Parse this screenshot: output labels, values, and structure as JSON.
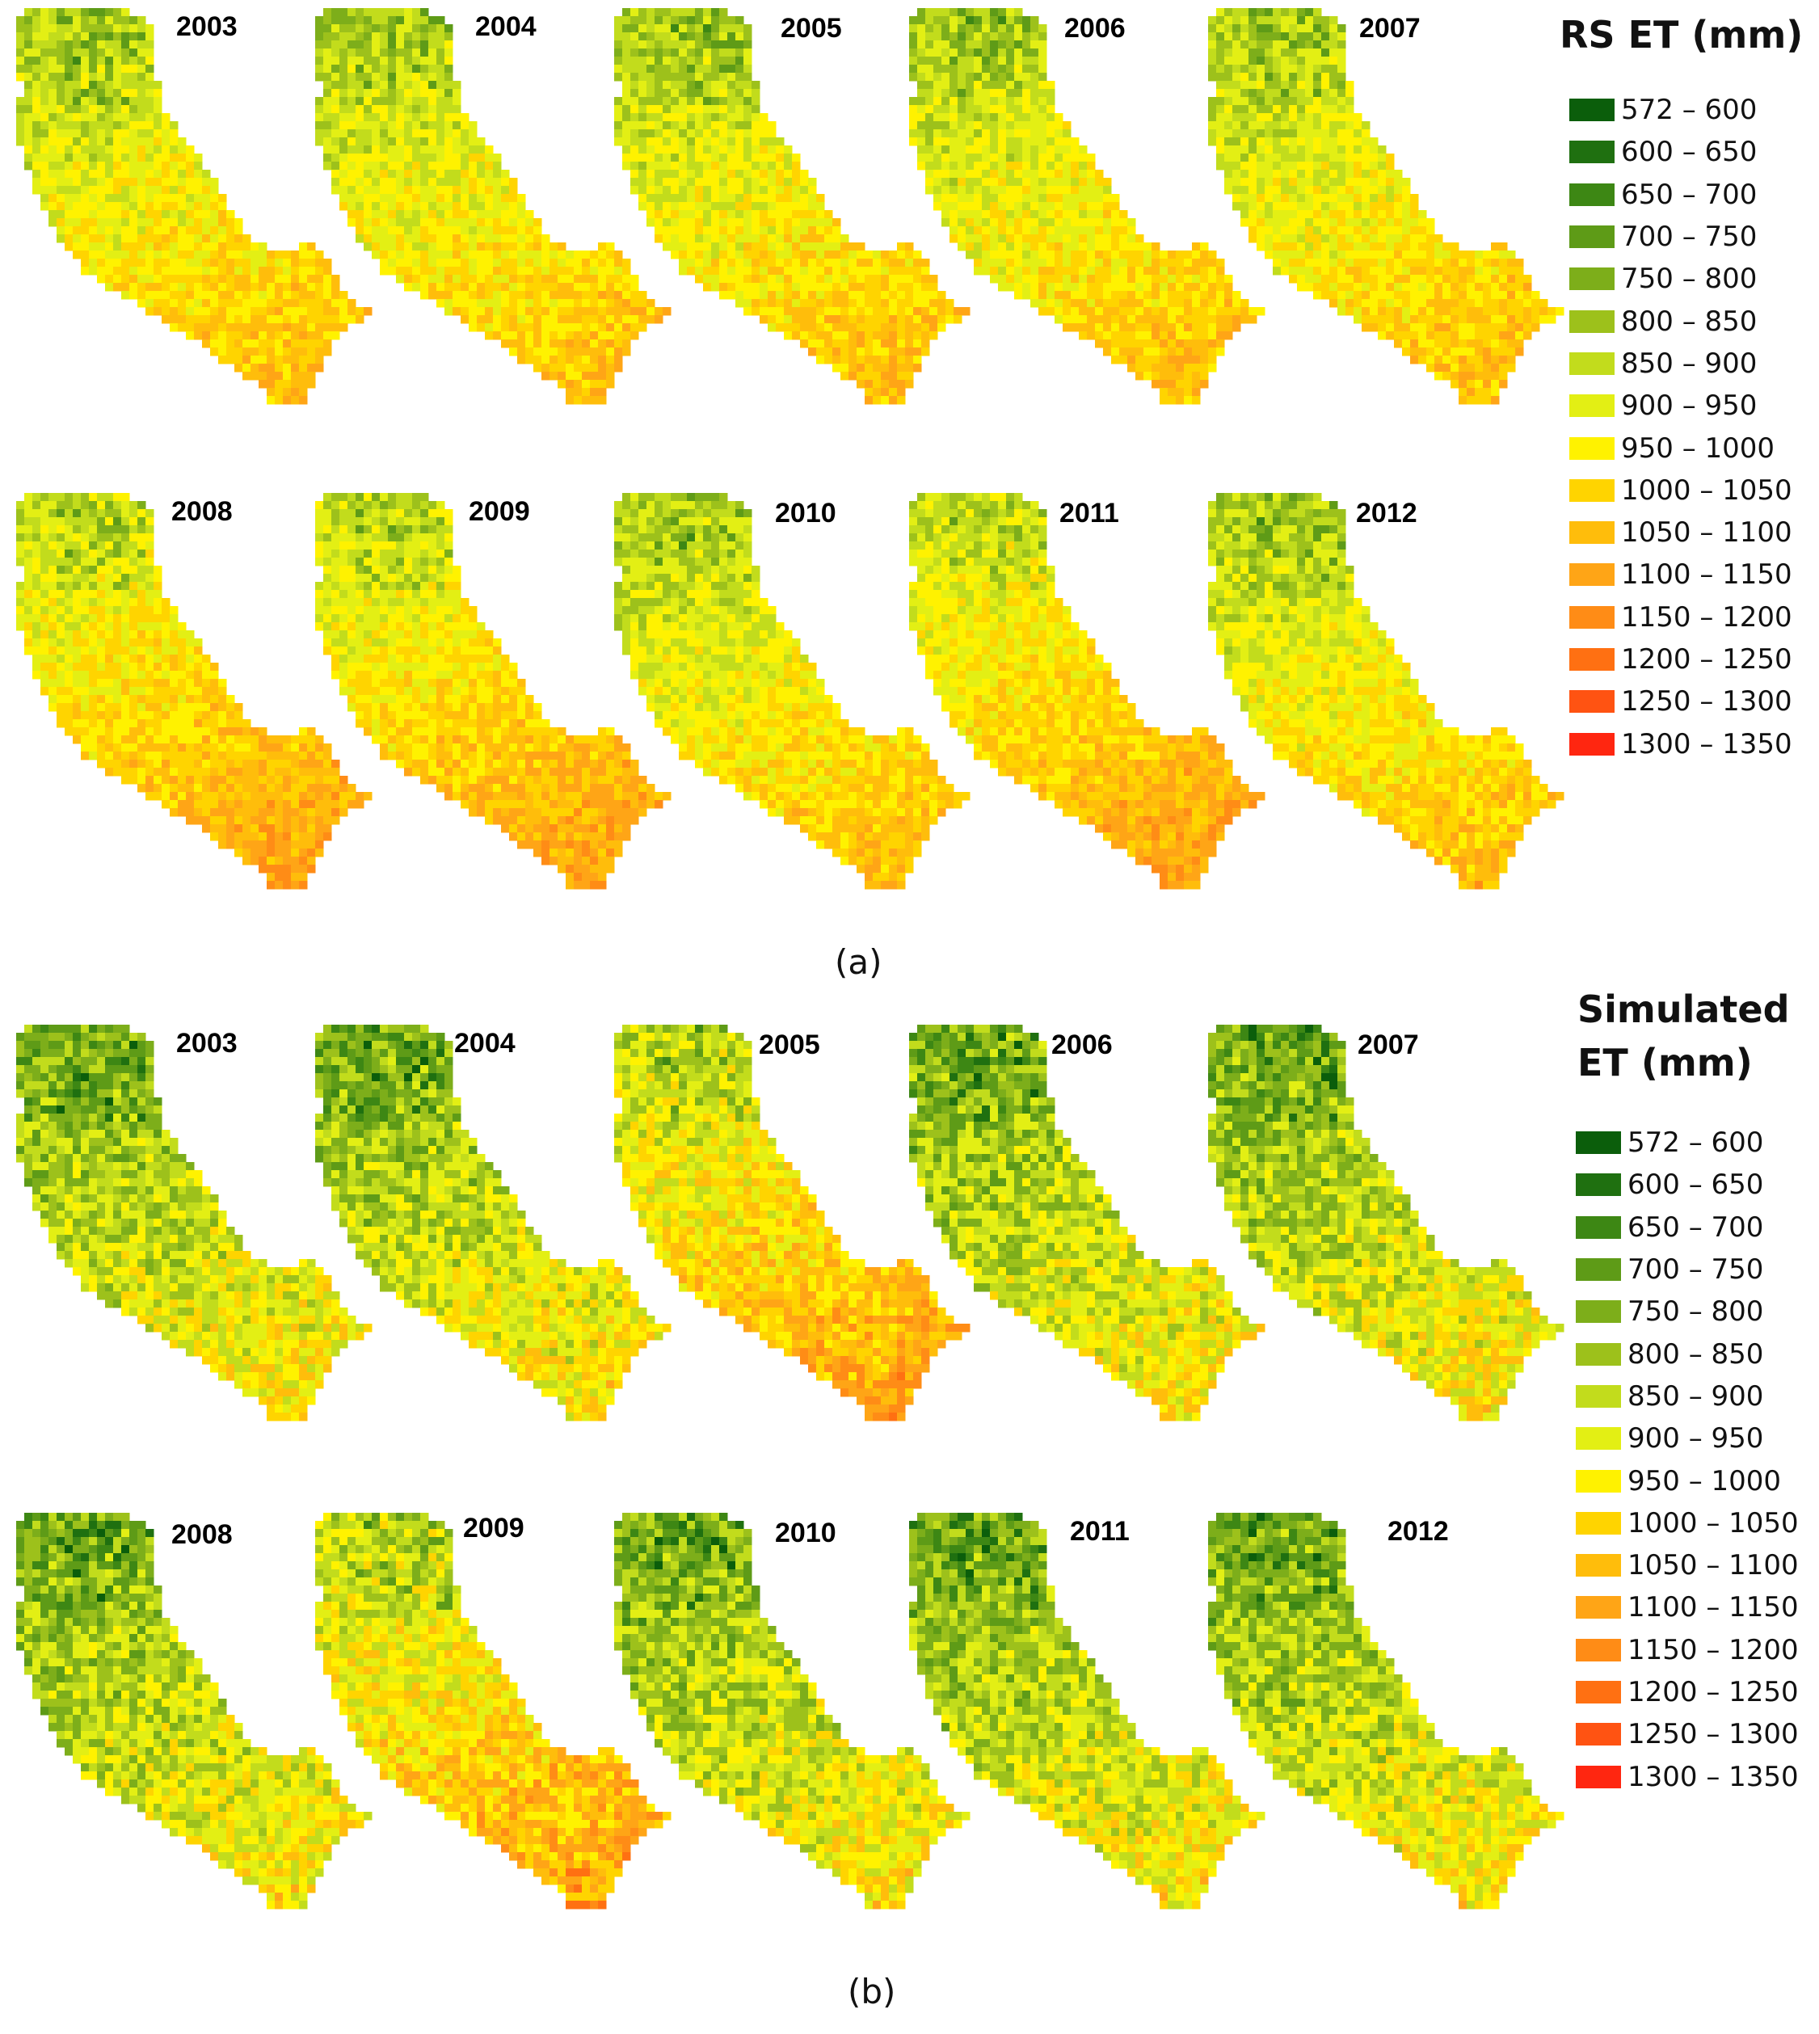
{
  "figure": {
    "panels": [
      {
        "id": "a",
        "caption": "(a)",
        "legend_title": "RS ET (mm)",
        "years": [
          "2003",
          "2004",
          "2005",
          "2006",
          "2007",
          "2008",
          "2009",
          "2010",
          "2011",
          "2012"
        ]
      },
      {
        "id": "b",
        "caption": "(b)",
        "legend_title_lines": [
          "Simulated",
          "ET (mm)"
        ],
        "years": [
          "2003",
          "2004",
          "2005",
          "2006",
          "2007",
          "2008",
          "2009",
          "2010",
          "2011",
          "2012"
        ]
      }
    ],
    "legend_classes": [
      {
        "label": "572 – 600",
        "color": "#0b5e0b"
      },
      {
        "label": "600 – 650",
        "color": "#1f7010"
      },
      {
        "label": "650 – 700",
        "color": "#3d8714"
      },
      {
        "label": "700 – 750",
        "color": "#5e9b17"
      },
      {
        "label": "750 – 800",
        "color": "#7dae1a"
      },
      {
        "label": "800 – 850",
        "color": "#9dc11b"
      },
      {
        "label": "850 – 900",
        "color": "#c2dc1c"
      },
      {
        "label": "900 – 950",
        "color": "#e3ef14"
      },
      {
        "label": "950 – 1000",
        "color": "#fff200"
      },
      {
        "label": "1000 – 1050",
        "color": "#ffd400"
      },
      {
        "label": "1050 – 1100",
        "color": "#ffbd0b"
      },
      {
        "label": "1100 – 1150",
        "color": "#ffa516"
      },
      {
        "label": "1150 – 1200",
        "color": "#ff8c16"
      },
      {
        "label": "1200 – 1250",
        "color": "#ff7012"
      },
      {
        "label": "1250 – 1300",
        "color": "#ff5312"
      },
      {
        "label": "1300 – 1350",
        "color": "#ff2610"
      }
    ]
  }
}
